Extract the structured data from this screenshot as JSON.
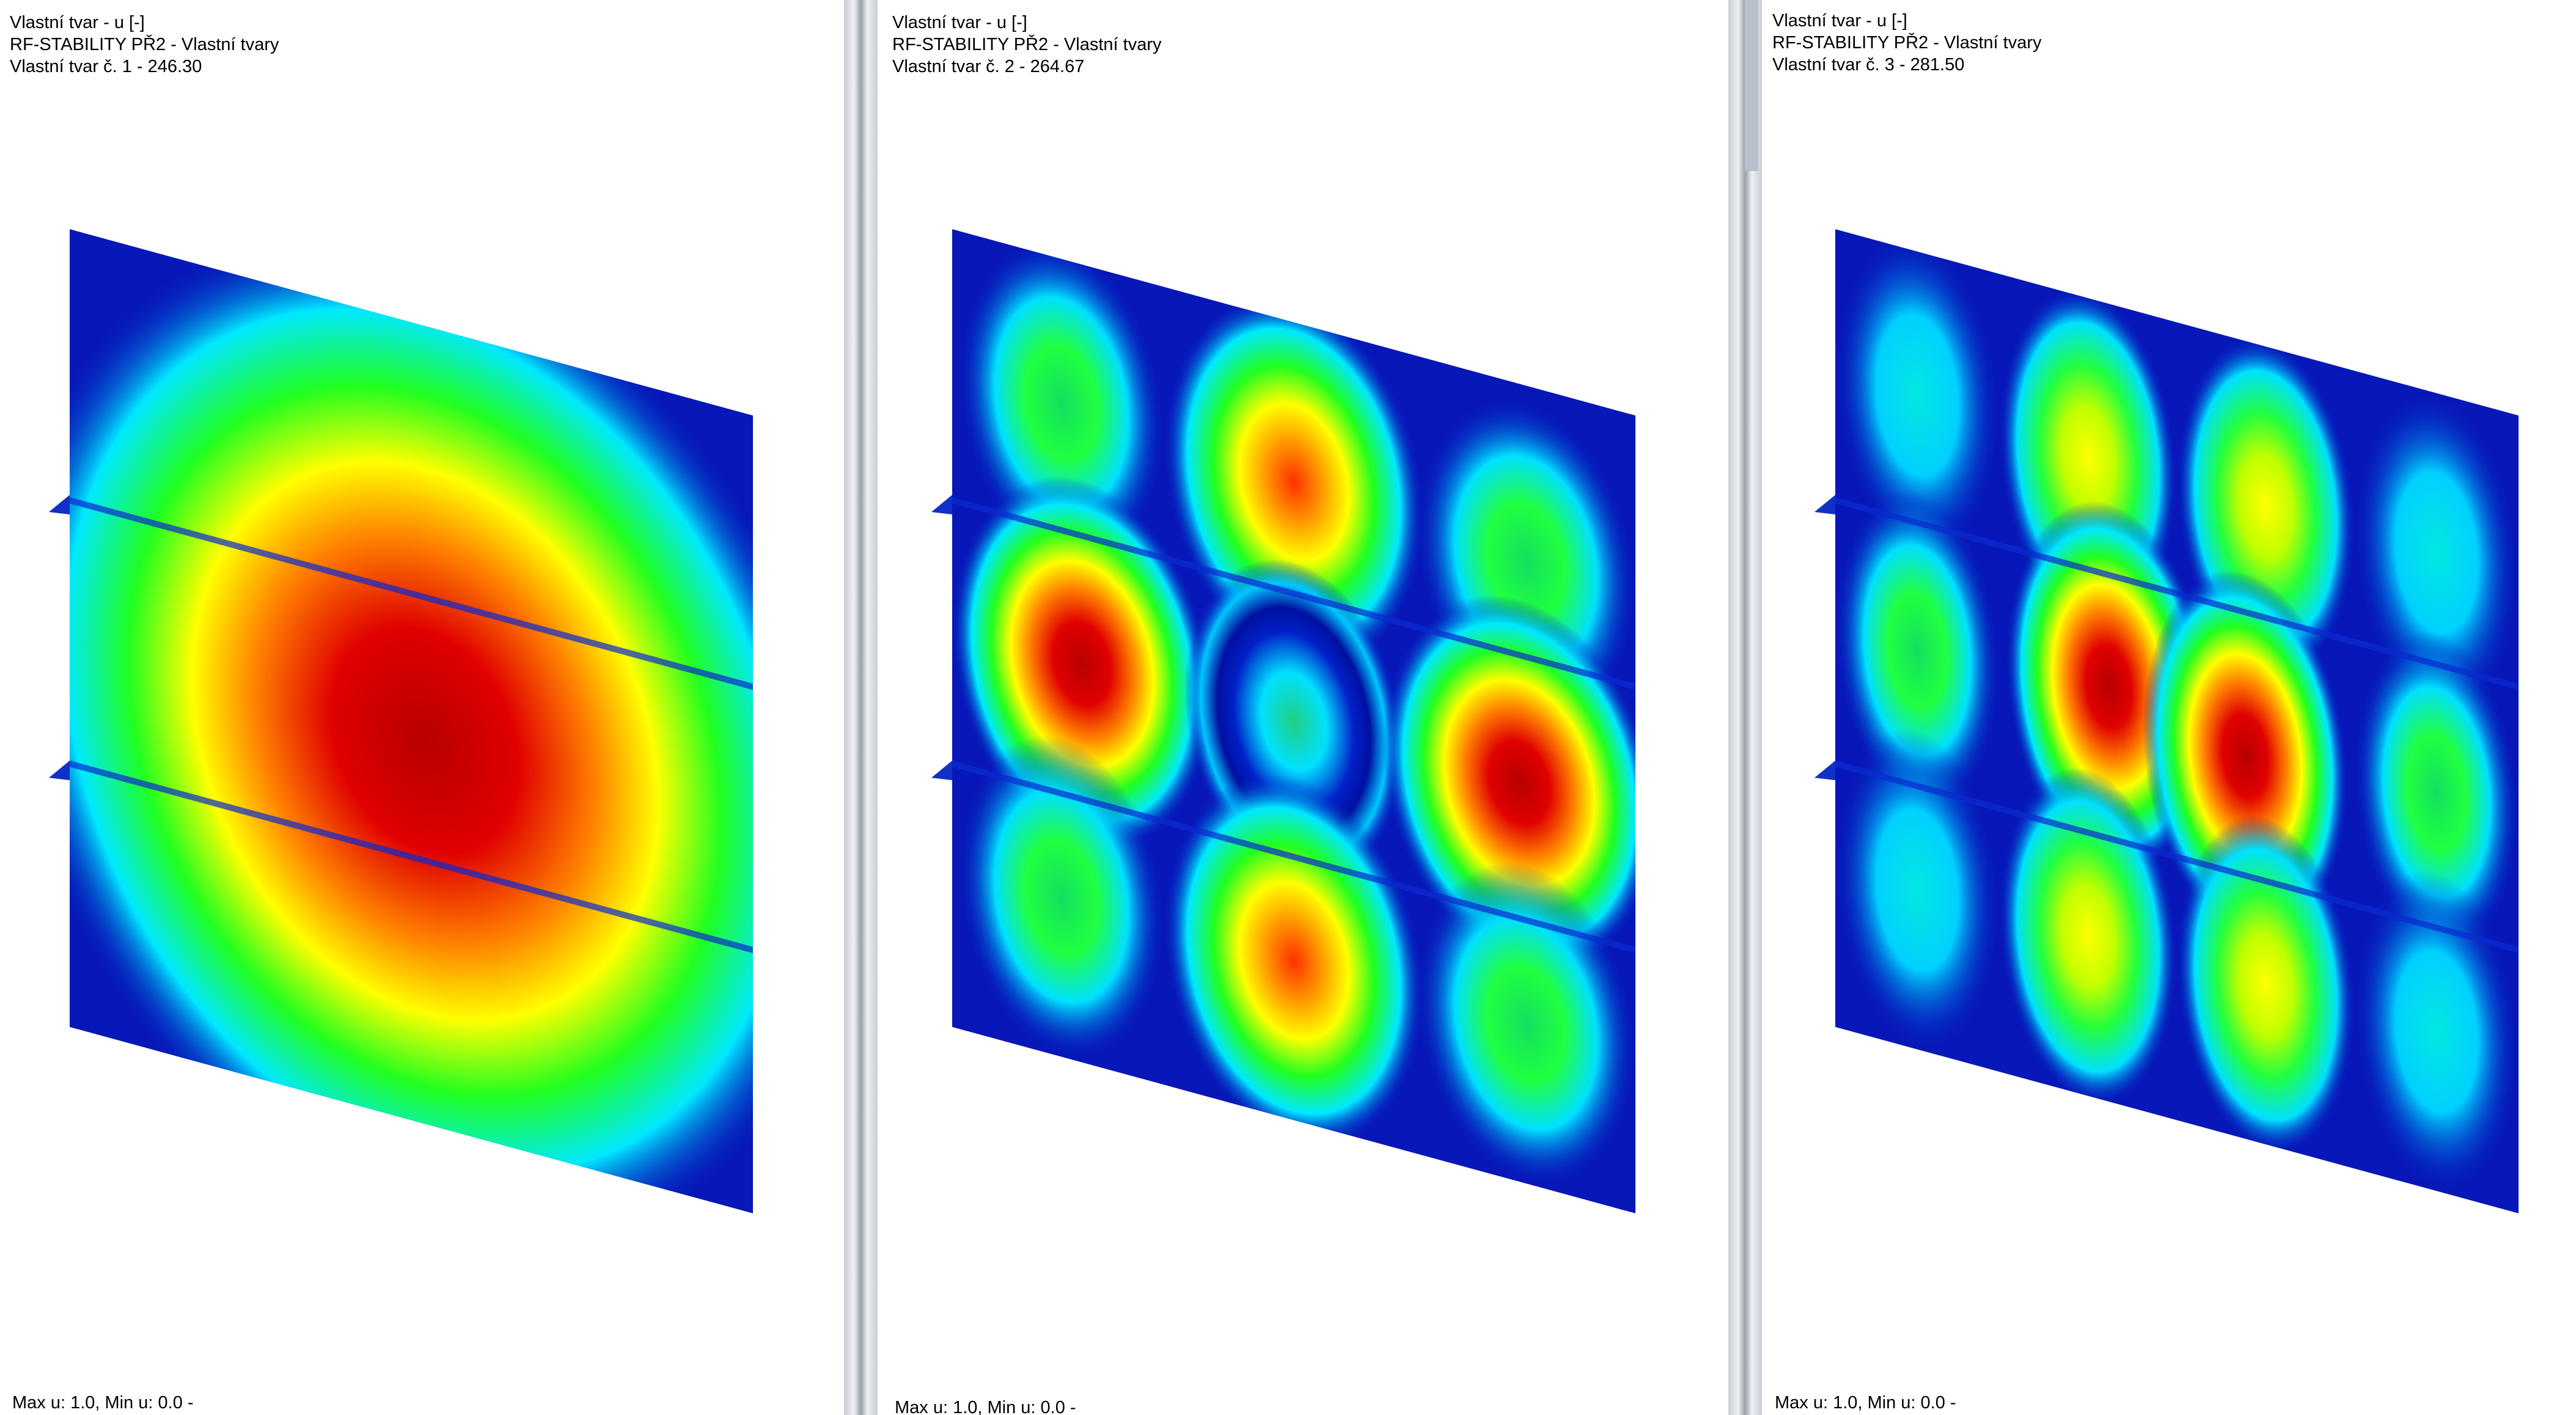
{
  "panels": [
    {
      "lines": [
        "Vlastní tvar - u [-]",
        "RF-STABILITY PŘ2 - Vlastní tvary",
        "Vlastní tvar č. 1 - 246.30"
      ],
      "footer": "Max u: 1.0, Min u: 0.0 -"
    },
    {
      "lines": [
        "Vlastní tvar - u [-]",
        "RF-STABILITY PŘ2 - Vlastní tvary",
        "Vlastní tvar č. 2 - 264.67"
      ],
      "footer": "Max u: 1.0, Min u: 0.0 -"
    },
    {
      "lines": [
        "Vlastní tvar - u [-]",
        "RF-STABILITY PŘ2 - Vlastní tvary",
        "Vlastní tvar č. 3 - 281.50"
      ],
      "footer": "Max u: 1.0, Min u: 0.0 -"
    }
  ]
}
